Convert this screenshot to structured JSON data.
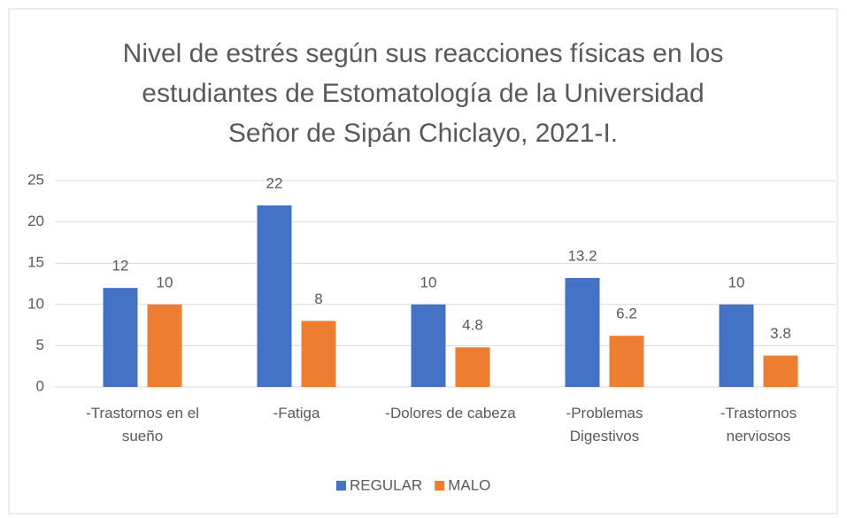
{
  "chart_data": {
    "type": "bar",
    "title": "Nivel de estrés según sus reacciones físicas en los estudiantes de Estomatología de la Universidad Señor de Sipán Chiclayo, 2021-I.",
    "categories": [
      "-Trastornos en el sueño",
      "-Fatiga",
      "-Dolores de cabeza",
      "-Problemas Digestivos",
      "-Trastornos nerviosos"
    ],
    "series": [
      {
        "name": "REGULAR",
        "color": "#4472c4",
        "values": [
          12,
          22,
          10,
          13.2,
          10
        ]
      },
      {
        "name": "MALO",
        "color": "#ed7d31",
        "values": [
          10,
          8,
          4.8,
          6.2,
          3.8
        ]
      }
    ],
    "ylim": [
      0,
      25
    ],
    "yticks": [
      0,
      5,
      10,
      15,
      20,
      25
    ],
    "grid": true,
    "legend": "bottom"
  }
}
